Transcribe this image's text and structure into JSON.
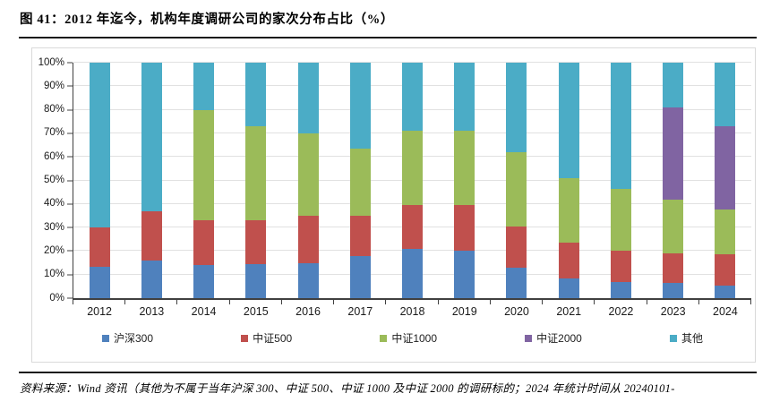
{
  "header": {
    "title": "图 41：2012 年迄今，机构年度调研公司的家次分布占比（%）"
  },
  "footer": {
    "source": "资料来源：Wind 资讯（其他为不属于当年沪深 300、中证 500、中证 1000 及中证 2000 的调研标的；2024 年统计时间从 20240101-"
  },
  "colors": {
    "hs300": "#4F81BD",
    "zz500": "#C0504D",
    "zz1000": "#9BBB59",
    "zz2000": "#8064A2",
    "other": "#4BACC6",
    "gridline": "#E1E1E1",
    "axis": "#404040",
    "frame_border": "#D9D9D9",
    "rule": "#1A1A1A"
  },
  "chart_data": {
    "type": "bar",
    "stacked": true,
    "title": "图 41：2012 年迄今，机构年度调研公司的家次分布占比（%）",
    "categories": [
      "2012",
      "2013",
      "2014",
      "2015",
      "2016",
      "2017",
      "2018",
      "2019",
      "2020",
      "2021",
      "2022",
      "2023",
      "2024"
    ],
    "series": [
      {
        "name": "沪深300",
        "color": "#4F81BD",
        "values": [
          13.5,
          16,
          14,
          14.5,
          15,
          18,
          21,
          20,
          13,
          8.5,
          7,
          6.5,
          5.5
        ]
      },
      {
        "name": "中证500",
        "color": "#C0504D",
        "values": [
          16.5,
          21,
          19,
          18.5,
          20,
          17,
          18.5,
          19.5,
          17.5,
          15,
          13,
          12.5,
          13
        ]
      },
      {
        "name": "中证1000",
        "color": "#9BBB59",
        "values": [
          0,
          0,
          47,
          40,
          35,
          28.5,
          31.5,
          31.5,
          31.5,
          27.5,
          26.5,
          23,
          19
        ]
      },
      {
        "name": "中证2000",
        "color": "#8064A2",
        "values": [
          0,
          0,
          0,
          0,
          0,
          0,
          0,
          0,
          0,
          0,
          0,
          39,
          35.5
        ]
      },
      {
        "name": "其他",
        "color": "#4BACC6",
        "values": [
          70,
          63,
          20,
          27,
          30,
          36.5,
          29,
          29,
          38,
          49,
          53.5,
          19,
          27
        ]
      }
    ],
    "xlabel": "",
    "ylabel": "",
    "ylim": [
      0,
      100
    ],
    "yticks": [
      "0%",
      "10%",
      "20%",
      "30%",
      "40%",
      "50%",
      "60%",
      "70%",
      "80%",
      "90%",
      "100%"
    ],
    "grid": true,
    "legend_position": "bottom"
  }
}
